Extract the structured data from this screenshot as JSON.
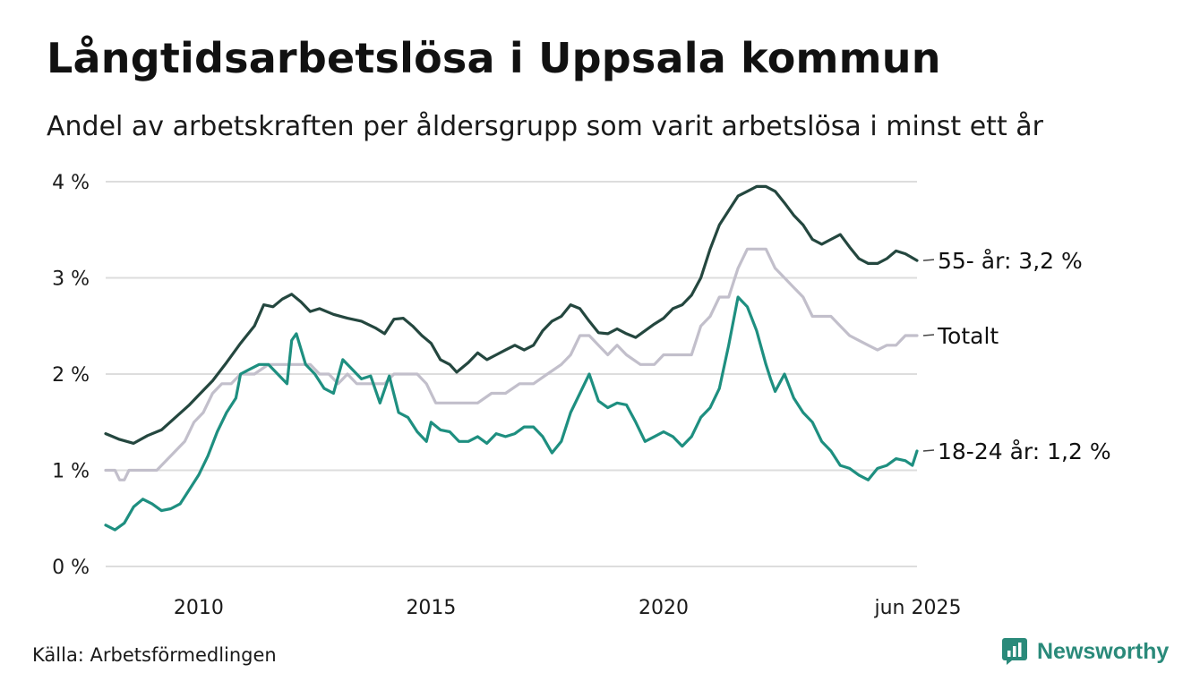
{
  "chart_data": {
    "type": "line",
    "title": "Långtidsarbetslösa i Uppsala kommun",
    "subtitle": "Andel av arbetskraften per åldersgrupp som varit arbetslösa i minst ett år",
    "y_ticks": [
      {
        "value": 0,
        "label": "0 %"
      },
      {
        "value": 1,
        "label": "1 %"
      },
      {
        "value": 2,
        "label": "2 %"
      },
      {
        "value": 3,
        "label": "3 %"
      },
      {
        "value": 4,
        "label": "4 %"
      }
    ],
    "x_ticks": [
      {
        "value": 2010,
        "label": "2010"
      },
      {
        "value": 2015,
        "label": "2015"
      },
      {
        "value": 2020,
        "label": "2020"
      },
      {
        "value": 2025.45,
        "label": "jun 2025"
      }
    ],
    "xlim": [
      2008.0,
      2025.45
    ],
    "ylim": [
      0,
      4
    ],
    "grid": true,
    "series": [
      {
        "name": "55- år",
        "end_label": "55- år: 3,2 %",
        "color": "#24473f",
        "points": [
          [
            2008.0,
            1.38
          ],
          [
            2008.3,
            1.32
          ],
          [
            2008.6,
            1.28
          ],
          [
            2008.9,
            1.36
          ],
          [
            2009.2,
            1.42
          ],
          [
            2009.5,
            1.55
          ],
          [
            2009.8,
            1.68
          ],
          [
            2010.0,
            1.78
          ],
          [
            2010.3,
            1.93
          ],
          [
            2010.6,
            2.12
          ],
          [
            2010.9,
            2.32
          ],
          [
            2011.2,
            2.5
          ],
          [
            2011.4,
            2.72
          ],
          [
            2011.6,
            2.7
          ],
          [
            2011.8,
            2.78
          ],
          [
            2012.0,
            2.83
          ],
          [
            2012.2,
            2.75
          ],
          [
            2012.4,
            2.65
          ],
          [
            2012.6,
            2.68
          ],
          [
            2012.9,
            2.62
          ],
          [
            2013.2,
            2.58
          ],
          [
            2013.5,
            2.55
          ],
          [
            2013.8,
            2.48
          ],
          [
            2014.0,
            2.42
          ],
          [
            2014.2,
            2.57
          ],
          [
            2014.4,
            2.58
          ],
          [
            2014.6,
            2.5
          ],
          [
            2014.8,
            2.4
          ],
          [
            2015.0,
            2.32
          ],
          [
            2015.2,
            2.15
          ],
          [
            2015.4,
            2.1
          ],
          [
            2015.55,
            2.02
          ],
          [
            2015.8,
            2.12
          ],
          [
            2016.0,
            2.22
          ],
          [
            2016.2,
            2.15
          ],
          [
            2016.4,
            2.2
          ],
          [
            2016.6,
            2.25
          ],
          [
            2016.8,
            2.3
          ],
          [
            2017.0,
            2.25
          ],
          [
            2017.2,
            2.3
          ],
          [
            2017.4,
            2.45
          ],
          [
            2017.6,
            2.55
          ],
          [
            2017.8,
            2.6
          ],
          [
            2018.0,
            2.72
          ],
          [
            2018.2,
            2.68
          ],
          [
            2018.4,
            2.55
          ],
          [
            2018.6,
            2.43
          ],
          [
            2018.8,
            2.42
          ],
          [
            2019.0,
            2.47
          ],
          [
            2019.2,
            2.42
          ],
          [
            2019.4,
            2.38
          ],
          [
            2019.6,
            2.45
          ],
          [
            2019.8,
            2.52
          ],
          [
            2020.0,
            2.58
          ],
          [
            2020.2,
            2.68
          ],
          [
            2020.4,
            2.72
          ],
          [
            2020.6,
            2.82
          ],
          [
            2020.8,
            3.0
          ],
          [
            2021.0,
            3.3
          ],
          [
            2021.2,
            3.55
          ],
          [
            2021.4,
            3.7
          ],
          [
            2021.6,
            3.85
          ],
          [
            2021.8,
            3.9
          ],
          [
            2022.0,
            3.95
          ],
          [
            2022.2,
            3.95
          ],
          [
            2022.4,
            3.9
          ],
          [
            2022.6,
            3.78
          ],
          [
            2022.8,
            3.65
          ],
          [
            2023.0,
            3.55
          ],
          [
            2023.2,
            3.4
          ],
          [
            2023.4,
            3.35
          ],
          [
            2023.6,
            3.4
          ],
          [
            2023.8,
            3.45
          ],
          [
            2024.0,
            3.32
          ],
          [
            2024.2,
            3.2
          ],
          [
            2024.4,
            3.15
          ],
          [
            2024.6,
            3.15
          ],
          [
            2024.8,
            3.2
          ],
          [
            2025.0,
            3.28
          ],
          [
            2025.2,
            3.25
          ],
          [
            2025.45,
            3.18
          ]
        ]
      },
      {
        "name": "Totalt",
        "end_label": "Totalt",
        "color": "#c2bfcb",
        "points": [
          [
            2008.0,
            1.0
          ],
          [
            2008.2,
            1.0
          ],
          [
            2008.3,
            0.9
          ],
          [
            2008.4,
            0.9
          ],
          [
            2008.5,
            1.0
          ],
          [
            2008.7,
            1.0
          ],
          [
            2008.9,
            1.0
          ],
          [
            2009.1,
            1.0
          ],
          [
            2009.3,
            1.1
          ],
          [
            2009.5,
            1.2
          ],
          [
            2009.7,
            1.3
          ],
          [
            2009.9,
            1.5
          ],
          [
            2010.1,
            1.6
          ],
          [
            2010.3,
            1.8
          ],
          [
            2010.5,
            1.9
          ],
          [
            2010.7,
            1.9
          ],
          [
            2010.9,
            2.0
          ],
          [
            2011.2,
            2.0
          ],
          [
            2011.5,
            2.1
          ],
          [
            2011.8,
            2.1
          ],
          [
            2012.1,
            2.1
          ],
          [
            2012.4,
            2.1
          ],
          [
            2012.6,
            2.0
          ],
          [
            2012.8,
            2.0
          ],
          [
            2013.0,
            1.9
          ],
          [
            2013.2,
            2.0
          ],
          [
            2013.4,
            1.9
          ],
          [
            2013.6,
            1.9
          ],
          [
            2013.8,
            1.9
          ],
          [
            2014.0,
            1.9
          ],
          [
            2014.2,
            2.0
          ],
          [
            2014.5,
            2.0
          ],
          [
            2014.7,
            2.0
          ],
          [
            2014.9,
            1.9
          ],
          [
            2015.1,
            1.7
          ],
          [
            2015.5,
            1.7
          ],
          [
            2016.0,
            1.7
          ],
          [
            2016.3,
            1.8
          ],
          [
            2016.6,
            1.8
          ],
          [
            2016.9,
            1.9
          ],
          [
            2017.2,
            1.9
          ],
          [
            2017.5,
            2.0
          ],
          [
            2017.8,
            2.1
          ],
          [
            2018.0,
            2.2
          ],
          [
            2018.2,
            2.4
          ],
          [
            2018.4,
            2.4
          ],
          [
            2018.6,
            2.3
          ],
          [
            2018.8,
            2.2
          ],
          [
            2019.0,
            2.3
          ],
          [
            2019.2,
            2.2
          ],
          [
            2019.5,
            2.1
          ],
          [
            2019.8,
            2.1
          ],
          [
            2020.0,
            2.2
          ],
          [
            2020.3,
            2.2
          ],
          [
            2020.6,
            2.2
          ],
          [
            2020.8,
            2.5
          ],
          [
            2021.0,
            2.6
          ],
          [
            2021.2,
            2.8
          ],
          [
            2021.4,
            2.8
          ],
          [
            2021.6,
            3.1
          ],
          [
            2021.8,
            3.3
          ],
          [
            2022.0,
            3.3
          ],
          [
            2022.2,
            3.3
          ],
          [
            2022.4,
            3.1
          ],
          [
            2022.6,
            3.0
          ],
          [
            2022.8,
            2.9
          ],
          [
            2023.0,
            2.8
          ],
          [
            2023.2,
            2.6
          ],
          [
            2023.4,
            2.6
          ],
          [
            2023.6,
            2.6
          ],
          [
            2023.8,
            2.5
          ],
          [
            2024.0,
            2.4
          ],
          [
            2024.2,
            2.35
          ],
          [
            2024.4,
            2.3
          ],
          [
            2024.6,
            2.25
          ],
          [
            2024.8,
            2.3
          ],
          [
            2025.0,
            2.3
          ],
          [
            2025.2,
            2.4
          ],
          [
            2025.45,
            2.4
          ]
        ]
      },
      {
        "name": "18-24 år",
        "end_label": "18-24 år: 1,2 %",
        "color": "#1e8f80",
        "points": [
          [
            2008.0,
            0.43
          ],
          [
            2008.2,
            0.38
          ],
          [
            2008.4,
            0.45
          ],
          [
            2008.6,
            0.62
          ],
          [
            2008.8,
            0.7
          ],
          [
            2009.0,
            0.65
          ],
          [
            2009.2,
            0.58
          ],
          [
            2009.4,
            0.6
          ],
          [
            2009.6,
            0.65
          ],
          [
            2009.8,
            0.8
          ],
          [
            2010.0,
            0.95
          ],
          [
            2010.2,
            1.15
          ],
          [
            2010.4,
            1.4
          ],
          [
            2010.6,
            1.6
          ],
          [
            2010.8,
            1.75
          ],
          [
            2010.9,
            2.0
          ],
          [
            2011.1,
            2.05
          ],
          [
            2011.3,
            2.1
          ],
          [
            2011.5,
            2.1
          ],
          [
            2011.7,
            2.0
          ],
          [
            2011.9,
            1.9
          ],
          [
            2012.0,
            2.35
          ],
          [
            2012.1,
            2.42
          ],
          [
            2012.3,
            2.1
          ],
          [
            2012.5,
            2.0
          ],
          [
            2012.7,
            1.85
          ],
          [
            2012.9,
            1.8
          ],
          [
            2013.1,
            2.15
          ],
          [
            2013.3,
            2.05
          ],
          [
            2013.5,
            1.95
          ],
          [
            2013.7,
            1.98
          ],
          [
            2013.9,
            1.7
          ],
          [
            2014.1,
            1.98
          ],
          [
            2014.3,
            1.6
          ],
          [
            2014.5,
            1.55
          ],
          [
            2014.7,
            1.4
          ],
          [
            2014.9,
            1.3
          ],
          [
            2015.0,
            1.5
          ],
          [
            2015.2,
            1.42
          ],
          [
            2015.4,
            1.4
          ],
          [
            2015.6,
            1.3
          ],
          [
            2015.8,
            1.3
          ],
          [
            2016.0,
            1.35
          ],
          [
            2016.2,
            1.28
          ],
          [
            2016.4,
            1.38
          ],
          [
            2016.6,
            1.35
          ],
          [
            2016.8,
            1.38
          ],
          [
            2017.0,
            1.45
          ],
          [
            2017.2,
            1.45
          ],
          [
            2017.4,
            1.35
          ],
          [
            2017.6,
            1.18
          ],
          [
            2017.8,
            1.3
          ],
          [
            2018.0,
            1.6
          ],
          [
            2018.2,
            1.8
          ],
          [
            2018.4,
            2.0
          ],
          [
            2018.6,
            1.72
          ],
          [
            2018.8,
            1.65
          ],
          [
            2019.0,
            1.7
          ],
          [
            2019.2,
            1.68
          ],
          [
            2019.4,
            1.5
          ],
          [
            2019.6,
            1.3
          ],
          [
            2019.8,
            1.35
          ],
          [
            2020.0,
            1.4
          ],
          [
            2020.2,
            1.35
          ],
          [
            2020.4,
            1.25
          ],
          [
            2020.6,
            1.35
          ],
          [
            2020.8,
            1.55
          ],
          [
            2021.0,
            1.65
          ],
          [
            2021.2,
            1.85
          ],
          [
            2021.4,
            2.3
          ],
          [
            2021.6,
            2.8
          ],
          [
            2021.8,
            2.7
          ],
          [
            2022.0,
            2.45
          ],
          [
            2022.2,
            2.1
          ],
          [
            2022.3,
            1.95
          ],
          [
            2022.4,
            1.82
          ],
          [
            2022.6,
            2.0
          ],
          [
            2022.8,
            1.75
          ],
          [
            2023.0,
            1.6
          ],
          [
            2023.2,
            1.5
          ],
          [
            2023.4,
            1.3
          ],
          [
            2023.6,
            1.2
          ],
          [
            2023.8,
            1.05
          ],
          [
            2024.0,
            1.02
          ],
          [
            2024.2,
            0.95
          ],
          [
            2024.4,
            0.9
          ],
          [
            2024.6,
            1.02
          ],
          [
            2024.8,
            1.05
          ],
          [
            2025.0,
            1.12
          ],
          [
            2025.2,
            1.1
          ],
          [
            2025.35,
            1.05
          ],
          [
            2025.45,
            1.2
          ]
        ]
      }
    ],
    "source": "Källa: Arbetsförmedlingen",
    "brand": "Newsworthy"
  },
  "colors": {
    "grid": "#dddddd",
    "text": "#1a1a1a",
    "brand": "#2a8a7a",
    "connector": "#444444"
  },
  "icons": {
    "brand_logo": "bar-chart-logo-icon"
  }
}
